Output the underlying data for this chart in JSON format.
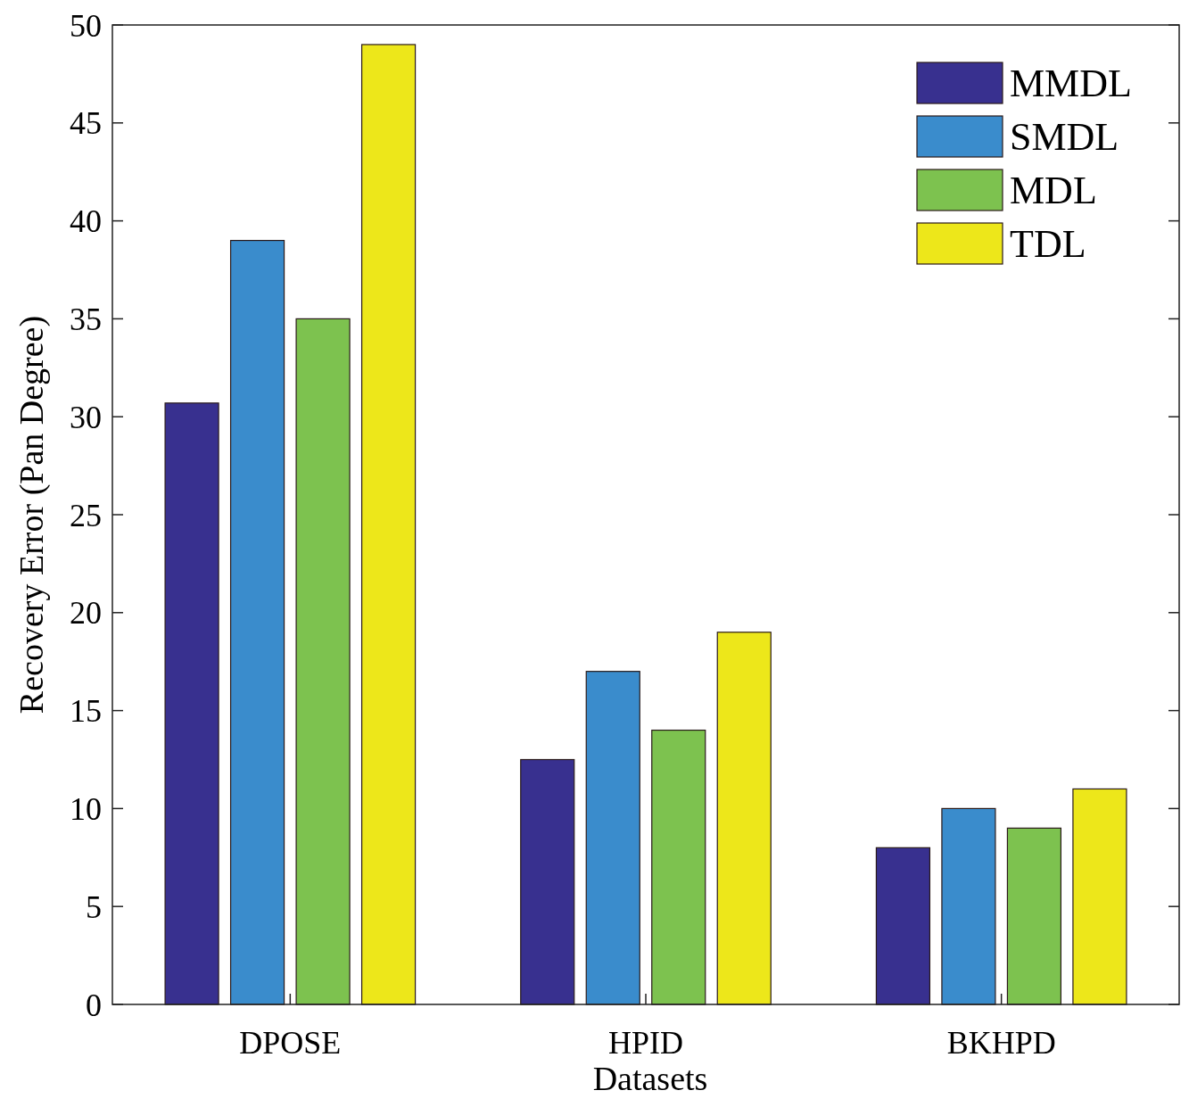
{
  "chart_data": {
    "type": "bar",
    "xlabel": "Datasets",
    "ylabel": "Recovery Error (Pan Degree)",
    "categories": [
      "DPOSE",
      "HPID",
      "BKHPD"
    ],
    "series": [
      {
        "name": "MMDL",
        "color": "#38308f",
        "values": [
          30.7,
          12.5,
          8
        ]
      },
      {
        "name": "SMDL",
        "color": "#3a8ccc",
        "values": [
          39,
          17,
          10
        ]
      },
      {
        "name": "MDL",
        "color": "#7dc24f",
        "values": [
          35,
          14,
          9
        ]
      },
      {
        "name": "TDL",
        "color": "#ede71a",
        "values": [
          49,
          19,
          11
        ]
      }
    ],
    "ylim": [
      0,
      50
    ],
    "yticks": [
      0,
      5,
      10,
      15,
      20,
      25,
      30,
      35,
      40,
      45,
      50
    ],
    "grid": false,
    "legend": "top right"
  }
}
